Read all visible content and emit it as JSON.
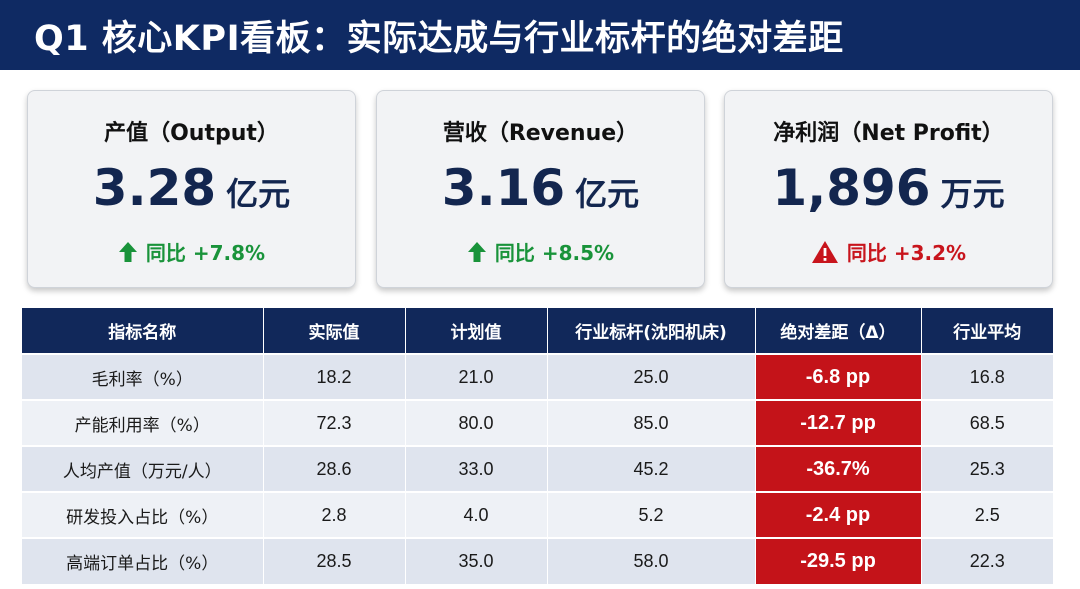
{
  "header": {
    "title": "Q1 核心KPI看板：实际达成与行业标杆的绝对差距"
  },
  "cards": [
    {
      "label": "产值（Output）",
      "value": "3.28",
      "unit": "亿元",
      "change": "同比 +7.8%",
      "change_icon": "arrow-up-icon",
      "change_color": "#19933a"
    },
    {
      "label": "营收（Revenue）",
      "value": "3.16",
      "unit": "亿元",
      "change": "同比 +8.5%",
      "change_icon": "arrow-up-icon",
      "change_color": "#19933a"
    },
    {
      "label": "净利润（Net Profit）",
      "value": "1,896",
      "unit": "万元",
      "change": "同比 +3.2%",
      "change_icon": "warning-icon",
      "change_color": "#c8141c"
    }
  ],
  "table": {
    "columns": [
      "指标名称",
      "实际值",
      "计划值",
      "行业标杆(沈阳机床)",
      "绝对差距（Δ）",
      "行业平均"
    ],
    "rows": [
      [
        "毛利率（%）",
        "18.2",
        "21.0",
        "25.0",
        "-6.8 pp",
        "16.8"
      ],
      [
        "产能利用率（%）",
        "72.3",
        "80.0",
        "85.0",
        "-12.7 pp",
        "68.5"
      ],
      [
        "人均产值（万元/人）",
        "28.6",
        "33.0",
        "45.2",
        "-36.7%",
        "25.3"
      ],
      [
        "研发投入占比（%）",
        "2.8",
        "4.0",
        "5.2",
        "-2.4 pp",
        "2.5"
      ],
      [
        "高端订单占比（%）",
        "28.5",
        "35.0",
        "58.0",
        "-29.5 pp",
        "22.3"
      ]
    ]
  },
  "colors": {
    "header_bg": "#0f2a63",
    "gap_cell_bg": "#c41319",
    "positive": "#19933a",
    "negative": "#c8141c"
  }
}
